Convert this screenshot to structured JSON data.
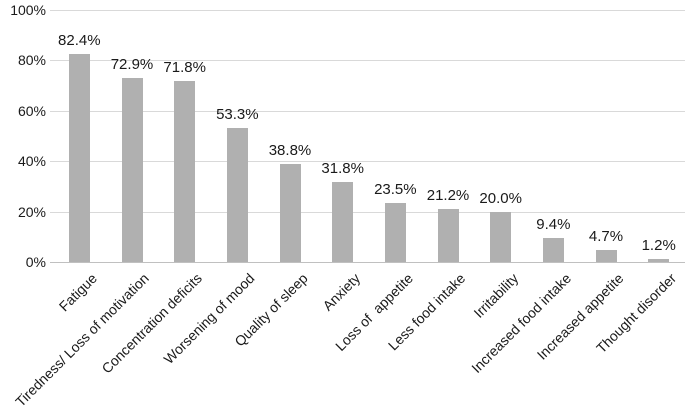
{
  "chart_data": {
    "type": "bar",
    "title": "",
    "xlabel": "",
    "ylabel": "",
    "categories": [
      "Fatigue",
      "Tiredness/ Loss of motivation",
      "Concentration deficits",
      "Worsening of mood",
      "Quality of sleep",
      "Anxiety",
      "Loss of  appetite",
      "Less food intake",
      "Irritability",
      "Increased food intake",
      "Increased appetite",
      "Thought disorder"
    ],
    "values": [
      82.4,
      72.9,
      71.8,
      53.3,
      38.8,
      31.8,
      23.5,
      21.2,
      20.0,
      9.4,
      4.7,
      1.2
    ],
    "data_labels": [
      "82.4%",
      "72.9%",
      "71.8%",
      "53.3%",
      "38.8%",
      "31.8%",
      "23.5%",
      "21.2%",
      "20.0%",
      "9.4%",
      "4.7%",
      "1.2%"
    ],
    "y_ticks": [
      "0%",
      "20%",
      "40%",
      "60%",
      "80%",
      "100%"
    ],
    "y_tick_values": [
      0,
      20,
      40,
      60,
      80,
      100
    ],
    "ylim": [
      0,
      100
    ],
    "grid": true,
    "legend": false,
    "category_label_rotation_deg": 45,
    "colors": {
      "bar_fill": "#b0b0b0",
      "gridline": "#d9d9d9",
      "axis_baseline": "#c0c0c0",
      "text": "#1a1a1a",
      "background": "#ffffff"
    }
  }
}
